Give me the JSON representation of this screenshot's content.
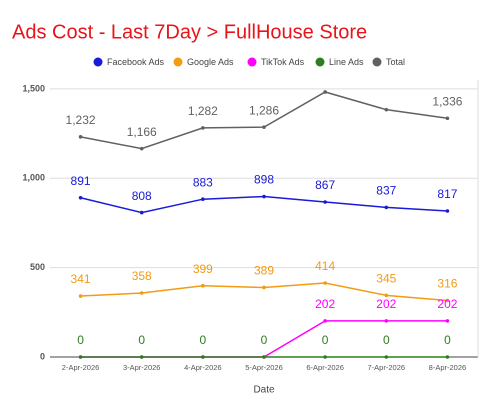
{
  "chart_data": {
    "type": "line",
    "title": "Ads Cost - Last 7Day > FullHouse Store",
    "x_label": "Date",
    "categories": [
      "2-Apr-2026",
      "3-Apr-2026",
      "4-Apr-2026",
      "5-Apr-2026",
      "6-Apr-2026",
      "7-Apr-2026",
      "8-Apr-2026"
    ],
    "series": [
      {
        "name": "Facebook Ads",
        "color": "#1a1ad9",
        "values": [
          891,
          808,
          883,
          898,
          867,
          837,
          817
        ]
      },
      {
        "name": "Google Ads",
        "color": "#f29b13",
        "values": [
          341,
          358,
          399,
          389,
          414,
          345,
          316
        ]
      },
      {
        "name": "TikTok Ads",
        "color": "#ff00ff",
        "values": [
          0,
          0,
          0,
          0,
          202,
          202,
          202
        ],
        "value_labels": [
          null,
          null,
          null,
          null,
          "202",
          "202",
          "202"
        ]
      },
      {
        "name": "Line Ads",
        "color": "#2e7d1f",
        "values": [
          0,
          0,
          0,
          0,
          0,
          0,
          0
        ]
      },
      {
        "name": "Total",
        "color": "#616161",
        "values": [
          1232,
          1166,
          1282,
          1286,
          1483,
          1384,
          1336
        ],
        "value_labels": [
          "1,232",
          "1,166",
          "1,282",
          "1,286",
          null,
          null,
          "1,336"
        ]
      }
    ],
    "ylim": [
      0,
      1550
    ],
    "yticks": [
      0,
      500,
      {
        "value": 1000,
        "label": "1,000"
      },
      {
        "value": 1500,
        "label": "1,500"
      }
    ],
    "grid": true,
    "legend": "top"
  }
}
